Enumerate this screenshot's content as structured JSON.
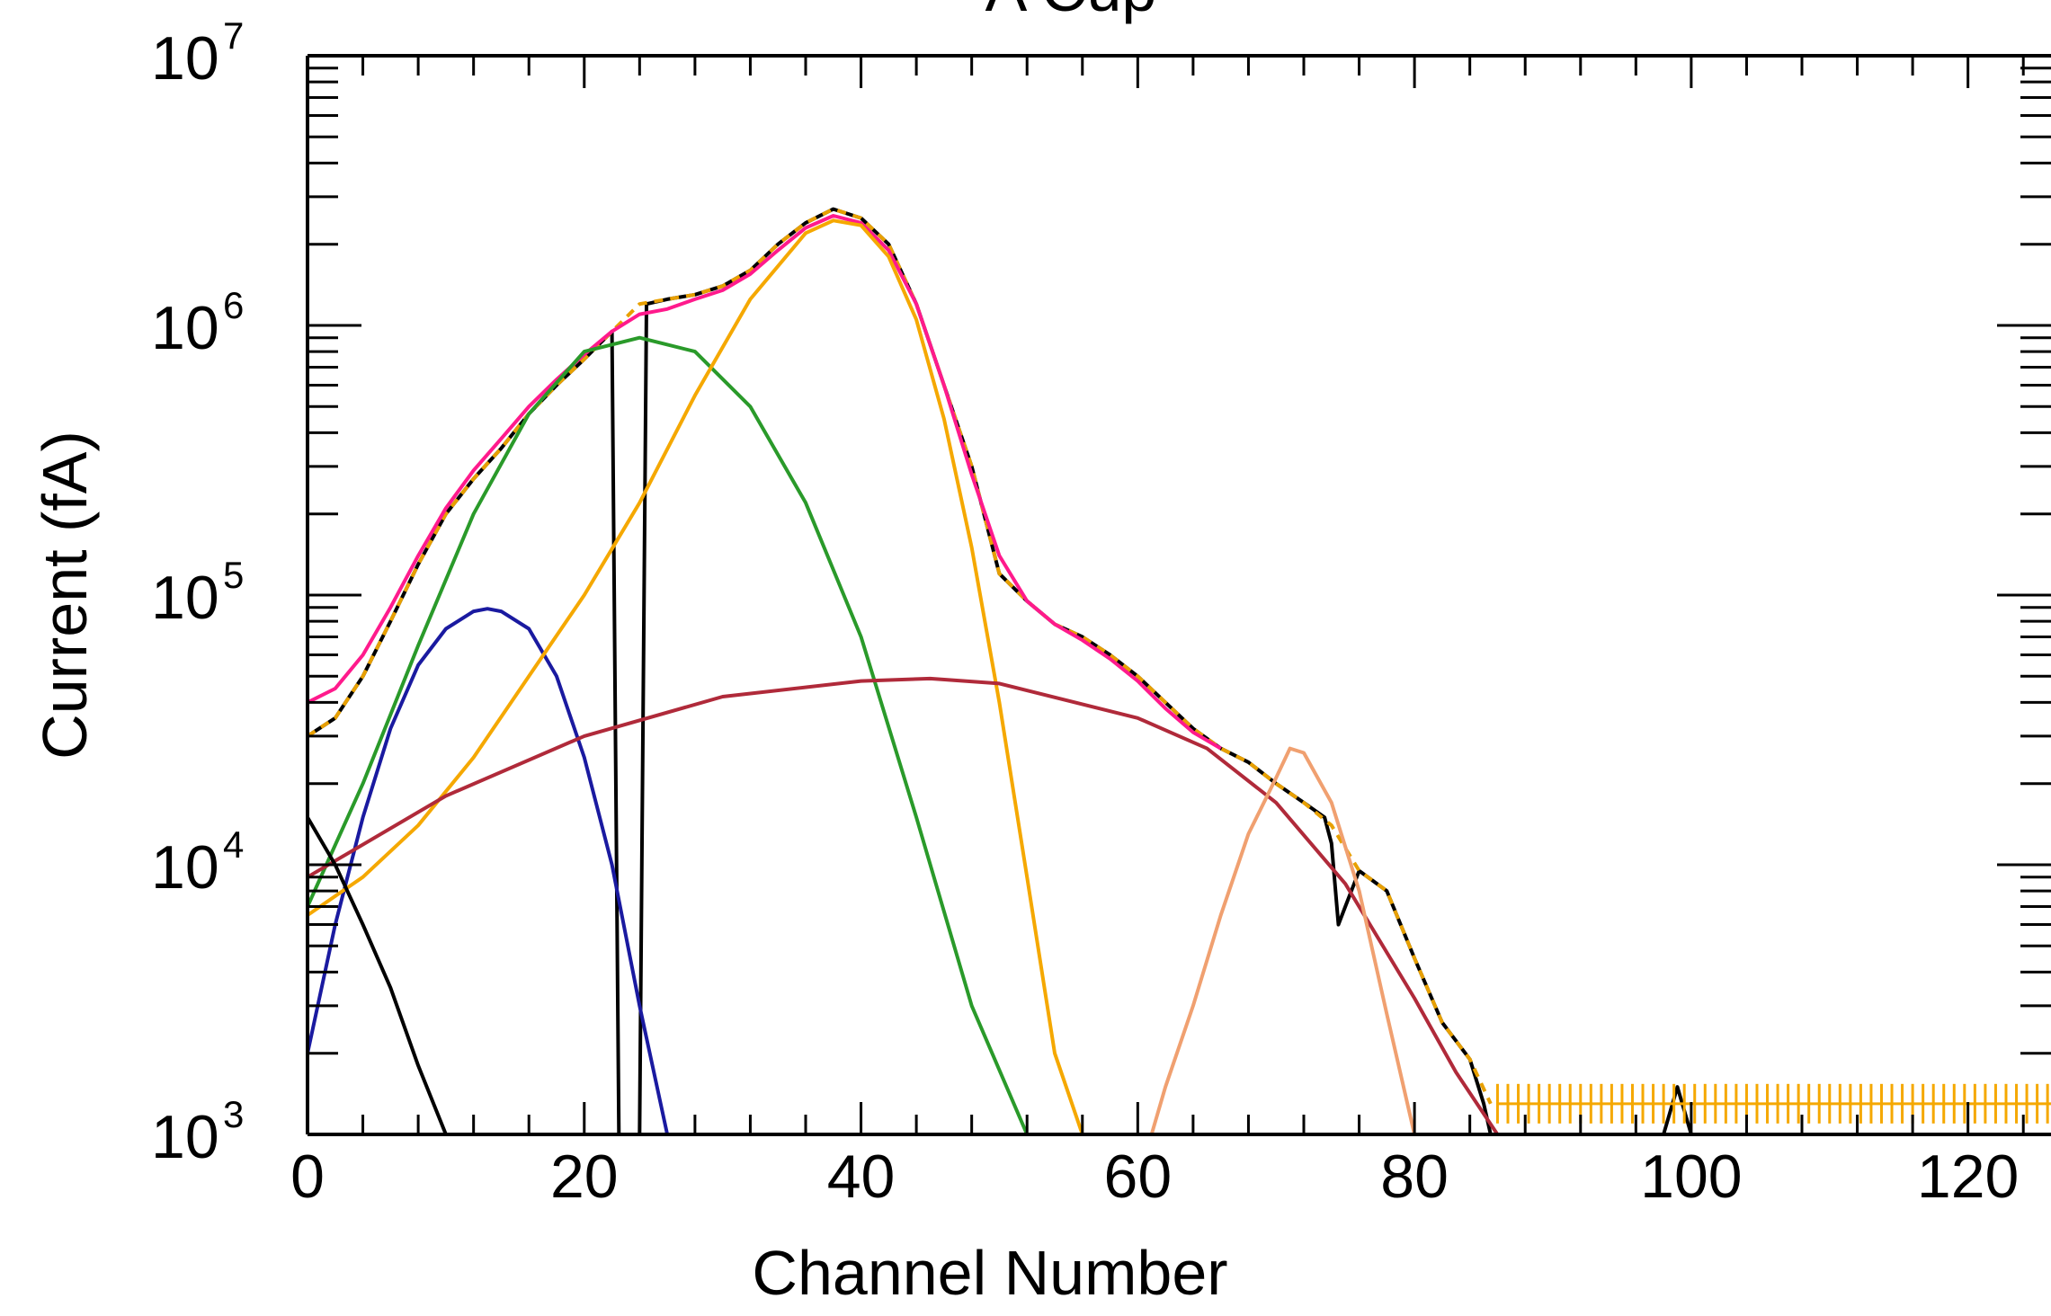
{
  "chart_data": {
    "type": "line",
    "title": "A Cup",
    "xlabel": "Channel Number",
    "ylabel": "Current (fA)",
    "xlim": [
      0,
      126
    ],
    "ylim": [
      1000,
      10000000
    ],
    "yscale": "log",
    "grid": false,
    "x_ticks": [
      0,
      20,
      40,
      60,
      80,
      100,
      120
    ],
    "x_tick_labels": [
      "0",
      "20",
      "40",
      "60",
      "80",
      "100",
      "120"
    ],
    "y_ticks": [
      1000,
      10000,
      100000,
      1000000,
      10000000
    ],
    "y_tick_base": [
      "10",
      "10",
      "10",
      "10",
      "10"
    ],
    "y_tick_exponents": [
      "3",
      "4",
      "5",
      "6",
      "7"
    ],
    "series": [
      {
        "color": "#000000",
        "style": "solid",
        "x": [
          0,
          2,
          4,
          6,
          8,
          10,
          12,
          14,
          16,
          18,
          20,
          22,
          22.5,
          23,
          23.5,
          24,
          24.5,
          26,
          28,
          30,
          32,
          34,
          36,
          38,
          40,
          42,
          44,
          46,
          48,
          50,
          52,
          54,
          56,
          58,
          60,
          62,
          64,
          66,
          68,
          70,
          72,
          73.5,
          74,
          74.5,
          75,
          76,
          78,
          80,
          82,
          84,
          85,
          85.5,
          90,
          95,
          98,
          99,
          100,
          105,
          110,
          115,
          120,
          126
        ],
        "y": [
          30000,
          35000,
          50000,
          80000,
          130000,
          200000,
          270000,
          350000,
          470000,
          600000,
          750000,
          950000,
          1000,
          1000,
          1000,
          1000,
          1200000,
          1250000,
          1300000,
          1400000,
          1600000,
          2000000,
          2400000,
          2700000,
          2500000,
          2000000,
          1200000,
          600000,
          300000,
          120000,
          95000,
          78000,
          70000,
          60000,
          50000,
          40000,
          32000,
          27000,
          24000,
          20000,
          17000,
          15000,
          12000,
          6000,
          7000,
          9500,
          8000,
          4500,
          2600,
          1900,
          1300,
          1000,
          1000,
          1000,
          1000,
          1500,
          1000,
          1000,
          1000,
          1000,
          1000,
          1000
        ]
      },
      {
        "color": "#e8a000",
        "style": "dashed",
        "x": [
          0,
          2,
          4,
          6,
          8,
          10,
          12,
          14,
          16,
          18,
          20,
          22,
          24,
          26,
          28,
          30,
          32,
          34,
          36,
          38,
          40,
          42,
          44,
          46,
          48,
          50,
          52,
          54,
          56,
          58,
          60,
          62,
          64,
          66,
          68,
          70,
          72,
          74,
          76,
          78,
          80,
          82,
          84,
          85.5
        ],
        "y": [
          30000,
          35000,
          50000,
          80000,
          130000,
          200000,
          270000,
          350000,
          470000,
          600000,
          750000,
          950000,
          1200000,
          1250000,
          1300000,
          1400000,
          1600000,
          2000000,
          2400000,
          2700000,
          2500000,
          2000000,
          1200000,
          600000,
          300000,
          120000,
          95000,
          78000,
          70000,
          60000,
          50000,
          40000,
          32000,
          27000,
          24000,
          20000,
          17000,
          14000,
          9500,
          8000,
          4500,
          2600,
          1900,
          1300
        ]
      },
      {
        "color": "#ff1a8c",
        "style": "solid",
        "x": [
          0,
          2,
          4,
          6,
          8,
          10,
          12,
          14,
          16,
          18,
          20,
          22,
          24,
          26,
          28,
          30,
          32,
          34,
          36,
          38,
          40,
          42,
          44,
          46,
          48,
          50,
          52,
          54,
          56,
          58,
          60,
          62,
          64,
          66
        ],
        "y": [
          40000,
          45000,
          60000,
          90000,
          140000,
          210000,
          290000,
          380000,
          500000,
          630000,
          780000,
          950000,
          1100000,
          1150000,
          1250000,
          1350000,
          1550000,
          1900000,
          2300000,
          2550000,
          2400000,
          1900000,
          1200000,
          600000,
          280000,
          140000,
          95000,
          78000,
          68000,
          58000,
          48000,
          38000,
          31000,
          27000
        ]
      },
      {
        "color": "#1a1aa0",
        "style": "solid",
        "x": [
          0,
          2,
          4,
          6,
          8,
          10,
          12,
          13,
          14,
          16,
          18,
          20,
          22,
          24,
          26
        ],
        "y": [
          2000,
          6000,
          15000,
          32000,
          55000,
          75000,
          87000,
          89000,
          87000,
          75000,
          50000,
          25000,
          10000,
          3000,
          1000
        ]
      },
      {
        "color": "#2a9a2a",
        "style": "solid",
        "x": [
          0,
          4,
          8,
          12,
          16,
          20,
          24,
          28,
          32,
          36,
          40,
          44,
          48,
          52,
          56,
          60,
          64,
          66,
          68,
          70,
          72,
          74,
          76,
          78,
          80,
          82,
          84,
          86,
          88,
          90
        ],
        "y": [
          7000,
          20000,
          65000,
          200000,
          470000,
          800000,
          900000,
          800000,
          500000,
          220000,
          70000,
          15000,
          3000,
          1000,
          1000,
          1000,
          1000,
          1000,
          1000,
          1000,
          1000,
          1000,
          1000,
          1000,
          1000,
          1000,
          1000,
          1000,
          1000,
          1000
        ]
      },
      {
        "color": "#f5a800",
        "style": "solid",
        "x": [
          0,
          4,
          8,
          12,
          16,
          20,
          24,
          28,
          32,
          36,
          38,
          40,
          42,
          44,
          46,
          48,
          50,
          52,
          54,
          56
        ],
        "y": [
          6500,
          9000,
          14000,
          25000,
          50000,
          100000,
          220000,
          550000,
          1250000,
          2200000,
          2450000,
          2350000,
          1800000,
          1050000,
          450000,
          150000,
          40000,
          9000,
          2000,
          1000
        ]
      },
      {
        "color": "#b02a3a",
        "style": "solid",
        "x": [
          0,
          10,
          20,
          30,
          40,
          45,
          50,
          60,
          65,
          70,
          75,
          80,
          83,
          86
        ],
        "y": [
          9000,
          18000,
          30000,
          42000,
          48000,
          49000,
          47000,
          35000,
          27000,
          17000,
          8500,
          3200,
          1700,
          1000
        ]
      },
      {
        "color": "#f0a070",
        "style": "solid",
        "x": [
          61,
          62,
          64,
          66,
          68,
          70,
          71,
          72,
          74,
          76,
          78,
          80
        ],
        "y": [
          1000,
          1500,
          3000,
          6500,
          13000,
          21000,
          27000,
          26000,
          17000,
          8000,
          2800,
          1000
        ]
      },
      {
        "color": "#000000",
        "style": "solid",
        "x": [
          0,
          2,
          4,
          6,
          8,
          10
        ],
        "y": [
          15000,
          10000,
          6000,
          3500,
          1800,
          1000
        ]
      }
    ],
    "x_stub": [
      {
        "x": [
          0,
          2,
          4,
          6,
          8,
          10
        ],
        "y": [
          15000,
          10000,
          6000,
          3500,
          1800,
          1000
        ]
      }
    ],
    "noise_floor": {
      "color": "#f5a800",
      "x_start": 86,
      "x_end": 126,
      "y_center": 1300
    }
  }
}
